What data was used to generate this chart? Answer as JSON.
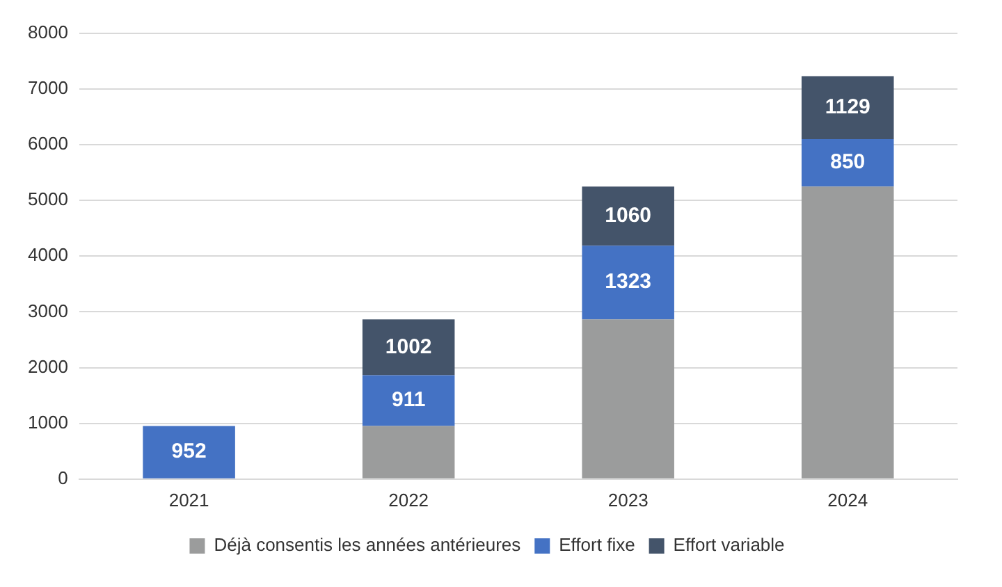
{
  "chart_data": {
    "type": "bar",
    "stacked": true,
    "categories": [
      "2021",
      "2022",
      "2023",
      "2024"
    ],
    "series": [
      {
        "name": "Déjà consentis les années antérieures",
        "color": "#9b9c9c",
        "values": [
          null,
          952,
          2865,
          5248
        ]
      },
      {
        "name": "Effort fixe",
        "color": "#4472c4",
        "values": [
          952,
          911,
          1323,
          850
        ],
        "value_labels": [
          "952",
          "911",
          "1323",
          "850"
        ]
      },
      {
        "name": "Effort variable",
        "color": "#44546a",
        "values": [
          null,
          1002,
          1060,
          1129
        ],
        "value_labels": [
          null,
          "1002",
          "1060",
          "1129"
        ]
      }
    ],
    "ylim": [
      0,
      8000
    ],
    "yticks": [
      0,
      1000,
      2000,
      3000,
      4000,
      5000,
      6000,
      7000,
      8000
    ],
    "grid": "y",
    "legend": "bottom"
  }
}
